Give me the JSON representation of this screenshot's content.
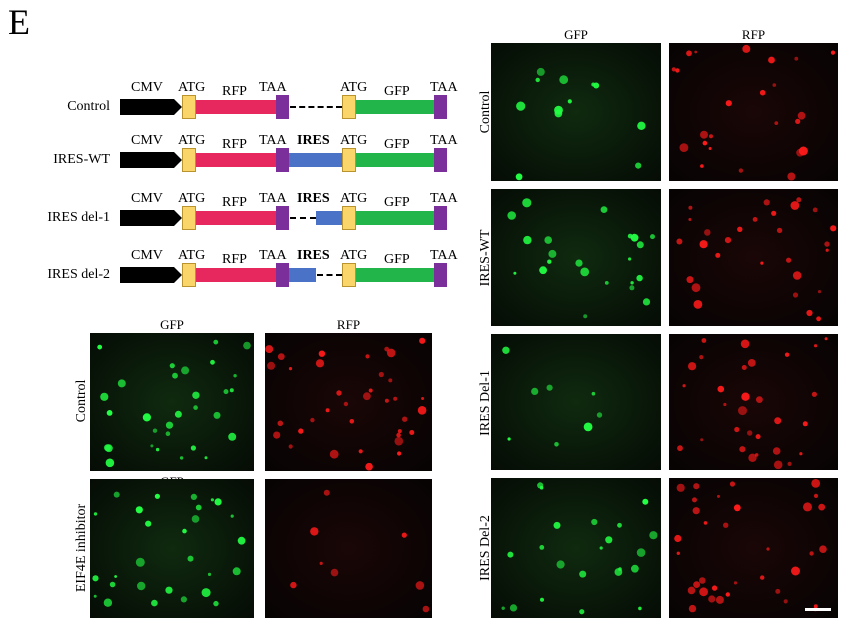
{
  "panel_letter": "E",
  "diagram": {
    "constructs": [
      {
        "name": "Control",
        "ires_label": ""
      },
      {
        "name": "IRES-WT",
        "ires_label": "IRES"
      },
      {
        "name": "IRES del-1",
        "ires_label": "IRES"
      },
      {
        "name": "IRES del-2",
        "ires_label": "IRES"
      }
    ],
    "element_labels": {
      "cmv": "CMV",
      "atg": "ATG",
      "rfp": "RFP",
      "taa": "TAA",
      "gfp": "GFP"
    },
    "colors": {
      "cmv": "#000000",
      "codon": "#f9d56a",
      "stop": "#7a2f9a",
      "rfp": "#e6285e",
      "gfp": "#22b64a",
      "ires": "#4a72c6"
    }
  },
  "left_grid": {
    "col_headers": [
      "GFP",
      "RFP"
    ],
    "second_row_gfp_header": "GFP",
    "rows": [
      "Control",
      "EIF4E inhibitor"
    ]
  },
  "right_grid": {
    "col_headers": [
      "GFP",
      "RFP"
    ],
    "rows": [
      "Control",
      "IRES-WT",
      "IRES Del-1",
      "IRES Del-2"
    ]
  },
  "channel_colors": {
    "gfp": "#22ff44",
    "rfp": "#ff1a1a"
  }
}
